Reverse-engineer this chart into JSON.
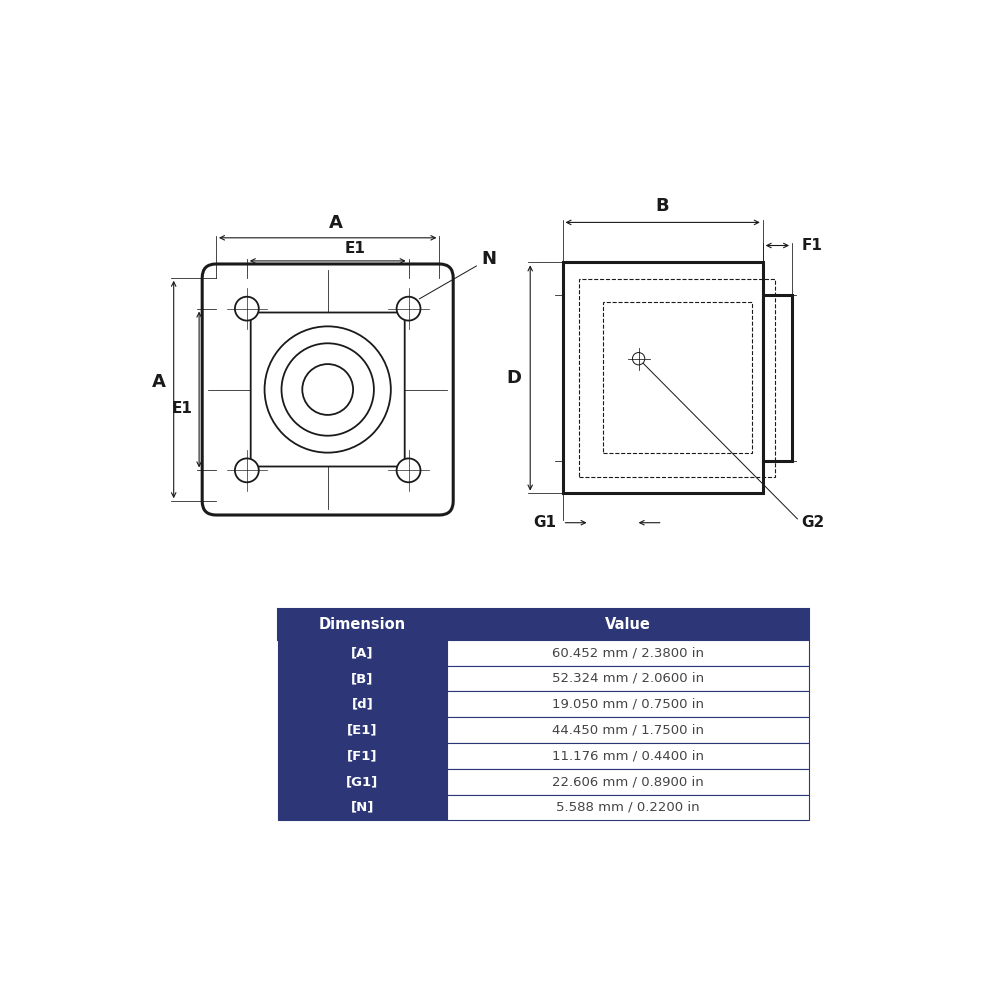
{
  "bg_color": "#ffffff",
  "line_color": "#1a1a1a",
  "table_header_color": "#2d3778",
  "table_border_color": "#2d3778",
  "table_header_text": "#ffffff",
  "table_row_text": "#444444",
  "table_dim_col_color": "#2d3778",
  "table_dim_col_text": "#ffffff",
  "table_data": [
    {
      "dim": "[A]",
      "val": "60.452 mm / 2.3800 in"
    },
    {
      "dim": "[B]",
      "val": "52.324 mm / 2.0600 in"
    },
    {
      "dim": "[d]",
      "val": "19.050 mm / 0.7500 in"
    },
    {
      "dim": "[E1]",
      "val": "44.450 mm / 1.7500 in"
    },
    {
      "dim": "[F1]",
      "val": "11.176 mm / 0.4400 in"
    },
    {
      "dim": "[G1]",
      "val": "22.606 mm / 0.8900 in"
    },
    {
      "dim": "[N]",
      "val": "5.588 mm / 0.2200 in"
    }
  ],
  "table_headers": [
    "Dimension",
    "Value"
  ]
}
